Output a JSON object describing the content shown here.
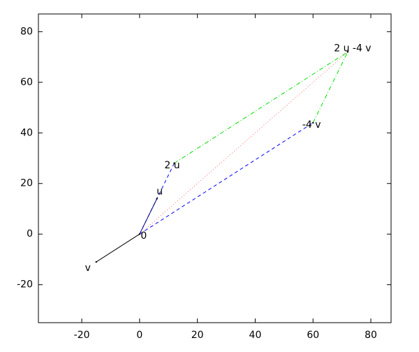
{
  "chart_data": {
    "type": "vector",
    "xlim": [
      -35,
      87
    ],
    "ylim": [
      -35,
      87
    ],
    "xticks": [
      -20,
      0,
      20,
      40,
      60,
      80
    ],
    "yticks": [
      -20,
      0,
      20,
      40,
      60,
      80
    ],
    "points": [
      {
        "label": "0",
        "x": 0,
        "y": 0
      },
      {
        "label": "u",
        "x": 6,
        "y": 14
      },
      {
        "label": "v",
        "x": -15,
        "y": -11
      },
      {
        "label": "2 u",
        "x": 12,
        "y": 28
      },
      {
        "label": "-4 v",
        "x": 60,
        "y": 44
      },
      {
        "label": "2 u -4 v",
        "x": 72,
        "y": 72
      }
    ],
    "segments": [
      {
        "from": 0,
        "to": 3,
        "color": "#0000ff",
        "style": "dashed"
      },
      {
        "from": 0,
        "to": 4,
        "color": "#0000ff",
        "style": "dashed"
      },
      {
        "from": 3,
        "to": 5,
        "color": "#00dd00",
        "style": "dashdot"
      },
      {
        "from": 4,
        "to": 5,
        "color": "#00dd00",
        "style": "dashdot"
      },
      {
        "from": 0,
        "to": 5,
        "color": "#ff6666",
        "style": "dotted"
      },
      {
        "from": 0,
        "to": 1,
        "color": "#000080",
        "style": "solid"
      },
      {
        "from": 0,
        "to": 2,
        "color": "#000000",
        "style": "solid"
      }
    ]
  }
}
